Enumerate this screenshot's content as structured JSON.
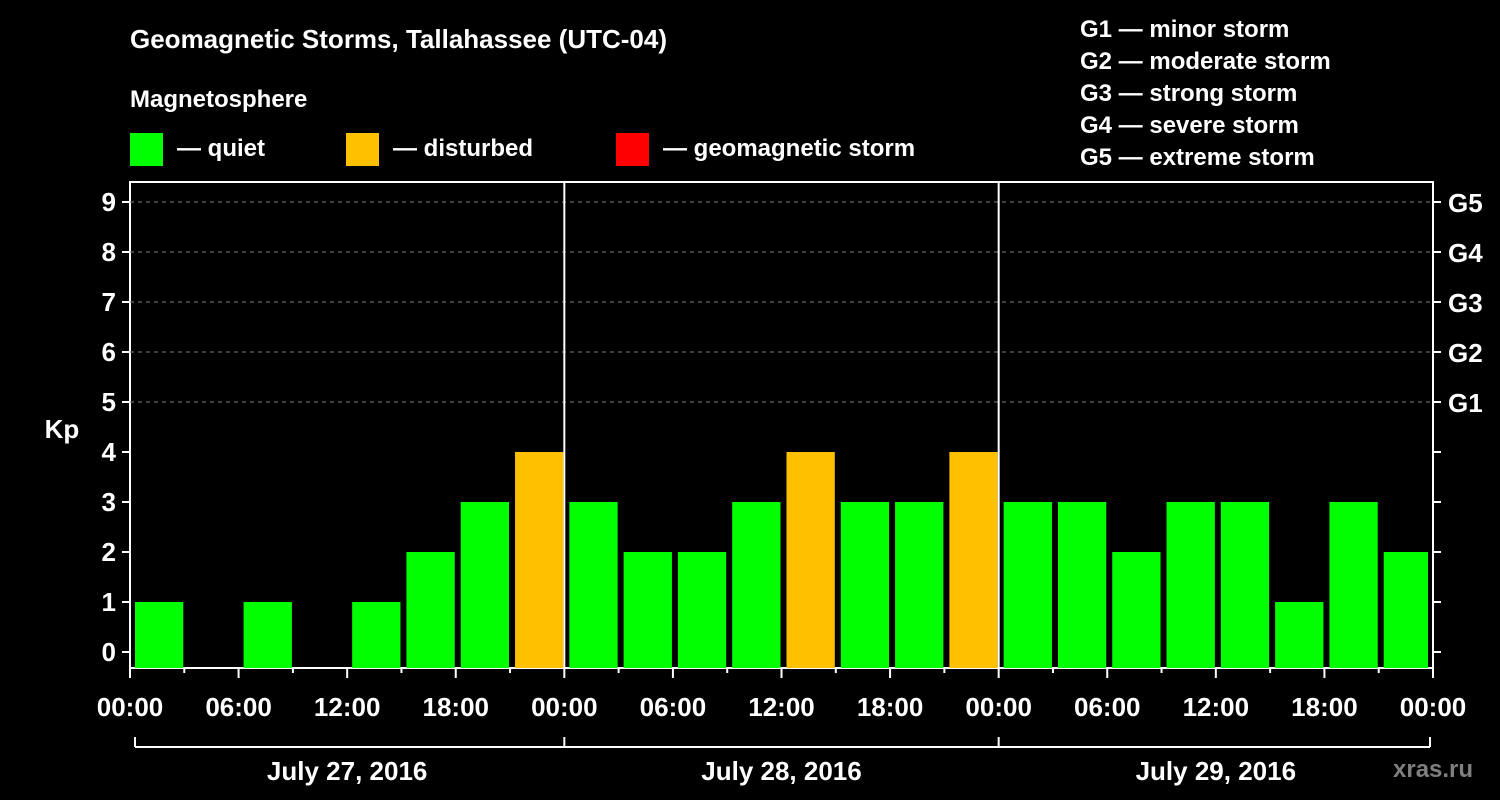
{
  "header": {
    "title": "Geomagnetic Storms, Tallahassee (UTC-04)",
    "subtitle": "Magnetosphere"
  },
  "legend": {
    "items": [
      {
        "label": "— quiet",
        "color": "#00ff00"
      },
      {
        "label": "— disturbed",
        "color": "#ffc000"
      },
      {
        "label": "— geomagnetic storm",
        "color": "#ff0000"
      }
    ],
    "storm_levels": [
      "G1 — minor storm",
      "G2 — moderate storm",
      "G3 — strong storm",
      "G4 — severe storm",
      "G5 — extreme storm"
    ]
  },
  "watermark": "xras.ru",
  "chart_data": {
    "type": "bar",
    "ylabel": "Kp",
    "ylim": [
      0,
      9
    ],
    "yticks": [
      0,
      1,
      2,
      3,
      4,
      5,
      6,
      7,
      8,
      9
    ],
    "y2_labels": [
      {
        "kp": 5,
        "label": "G1"
      },
      {
        "kp": 6,
        "label": "G2"
      },
      {
        "kp": 7,
        "label": "G3"
      },
      {
        "kp": 8,
        "label": "G4"
      },
      {
        "kp": 9,
        "label": "G5"
      }
    ],
    "grid": "horizontal dashed",
    "xtick_labels": [
      "00:00",
      "06:00",
      "12:00",
      "18:00",
      "00:00",
      "06:00",
      "12:00",
      "18:00",
      "00:00",
      "06:00",
      "12:00",
      "18:00",
      "00:00"
    ],
    "days": [
      "July 27, 2016",
      "July 28, 2016",
      "July 29, 2016"
    ],
    "interval_hours": 3,
    "categories": [
      "Jul 27 00:00",
      "Jul 27 03:00",
      "Jul 27 06:00",
      "Jul 27 09:00",
      "Jul 27 12:00",
      "Jul 27 15:00",
      "Jul 27 18:00",
      "Jul 27 21:00",
      "Jul 28 00:00",
      "Jul 28 03:00",
      "Jul 28 06:00",
      "Jul 28 09:00",
      "Jul 28 12:00",
      "Jul 28 15:00",
      "Jul 28 18:00",
      "Jul 28 21:00",
      "Jul 29 00:00",
      "Jul 29 03:00",
      "Jul 29 06:00",
      "Jul 29 09:00",
      "Jul 29 12:00",
      "Jul 29 15:00",
      "Jul 29 18:00",
      "Jul 29 21:00"
    ],
    "values": [
      1,
      0,
      1,
      0,
      1,
      2,
      3,
      4,
      3,
      2,
      2,
      3,
      4,
      3,
      3,
      4,
      3,
      3,
      2,
      3,
      3,
      1,
      3,
      2
    ],
    "colors": {
      "quiet": "#00ff00",
      "disturbed": "#ffc000",
      "storm": "#ff0000"
    }
  }
}
